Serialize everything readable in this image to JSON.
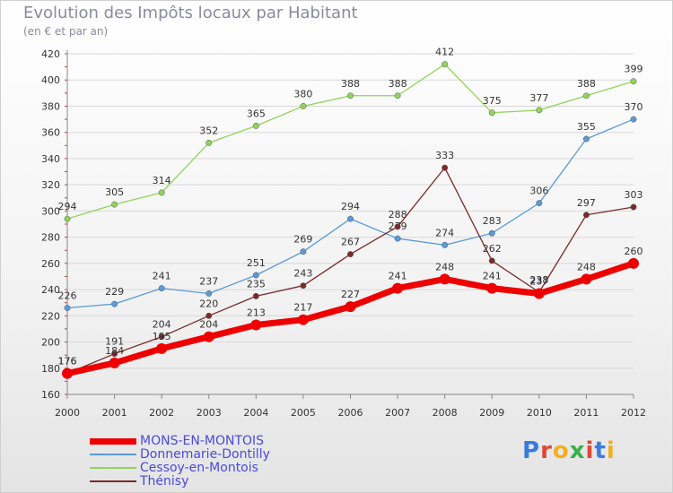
{
  "title": "Evolution des Impôts locaux par Habitant",
  "subtitle": "(en € et par an)",
  "logo": {
    "text": "Proxiti",
    "colors": [
      "#3a7be0",
      "#e0483a",
      "#f0b020",
      "#3ab04a",
      "#e0483a",
      "#3a7be0",
      "#f0b020"
    ]
  },
  "chart_data": {
    "type": "line",
    "title": "Evolution des Impôts locaux par Habitant",
    "subtitle": "(en € et par an)",
    "x": [
      "2000",
      "2001",
      "2002",
      "2003",
      "2004",
      "2005",
      "2006",
      "2007",
      "2008",
      "2009",
      "2010",
      "2011",
      "2012"
    ],
    "ylim": [
      160,
      420
    ],
    "yticks": [
      160,
      180,
      200,
      220,
      240,
      260,
      280,
      300,
      320,
      340,
      360,
      380,
      400,
      420
    ],
    "grid": true,
    "legend_position": "bottom-left",
    "series": [
      {
        "name": "Cessoy-en-Montois",
        "color": "#8fd45a",
        "values": [
          294,
          305,
          314,
          352,
          365,
          380,
          388,
          388,
          412,
          375,
          377,
          388,
          399
        ]
      },
      {
        "name": "Donnemarie-Dontilly",
        "color": "#5a9ad6",
        "values": [
          226,
          229,
          241,
          237,
          251,
          269,
          294,
          279,
          274,
          283,
          306,
          355,
          370
        ]
      },
      {
        "name": "Thénisy",
        "color": "#7a2a2a",
        "values": [
          176,
          191,
          204,
          220,
          235,
          243,
          267,
          288,
          333,
          262,
          238,
          297,
          303
        ]
      },
      {
        "name": "MONS-EN-MONTOIS",
        "color": "#ee0000",
        "values": [
          176,
          184,
          195,
          204,
          213,
          217,
          227,
          241,
          248,
          241,
          237,
          248,
          260
        ]
      }
    ],
    "legend": [
      "MONS-EN-MONTOIS",
      "Donnemarie-Dontilly",
      "Cessoy-en-Montois",
      "Thénisy"
    ]
  }
}
